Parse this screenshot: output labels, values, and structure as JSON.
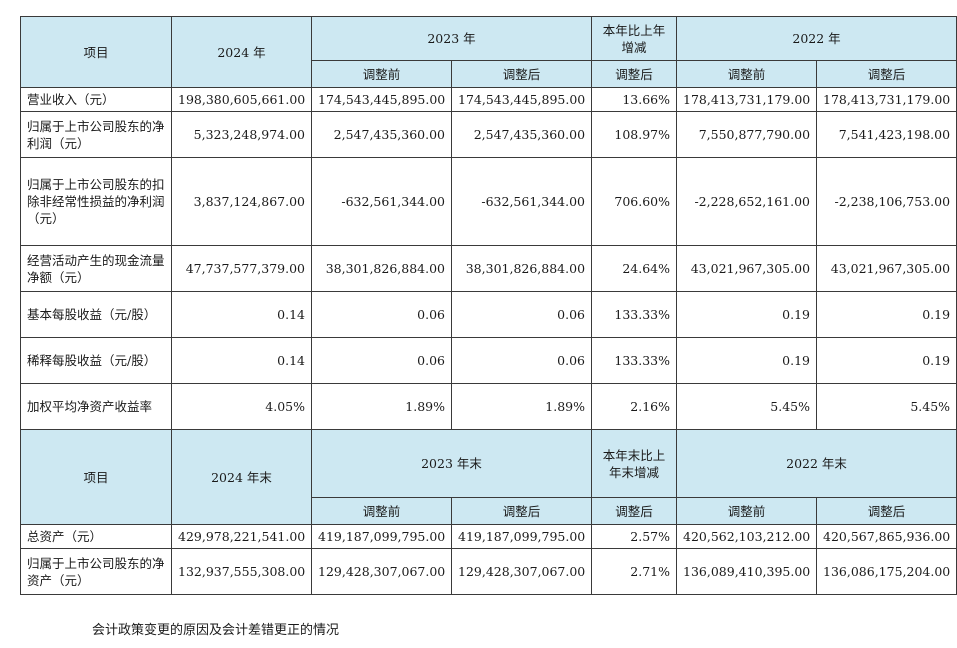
{
  "section1": {
    "col_item": "项目",
    "col_2024": "2024 年",
    "col_2023": "2023 年",
    "col_change": "本年比上年增减",
    "col_2022": "2022 年",
    "sub_before": "调整前",
    "sub_after": "调整后",
    "rows": [
      {
        "label": "营业收入（元）",
        "v2024": "198,380,605,661.00",
        "v2023b": "174,543,445,895.00",
        "v2023a": "174,543,445,895.00",
        "change": "13.66%",
        "v2022b": "178,413,731,179.00",
        "v2022a": "178,413,731,179.00"
      },
      {
        "label": "归属于上市公司股东的净利润（元）",
        "v2024": "5,323,248,974.00",
        "v2023b": "2,547,435,360.00",
        "v2023a": "2,547,435,360.00",
        "change": "108.97%",
        "v2022b": "7,550,877,790.00",
        "v2022a": "7,541,423,198.00"
      },
      {
        "label": "归属于上市公司股东的扣除非经常性损益的净利润（元）",
        "v2024": "3,837,124,867.00",
        "v2023b": "-632,561,344.00",
        "v2023a": "-632,561,344.00",
        "change": "706.60%",
        "v2022b": "-2,228,652,161.00",
        "v2022a": "-2,238,106,753.00"
      },
      {
        "label": "经营活动产生的现金流量净额（元）",
        "v2024": "47,737,577,379.00",
        "v2023b": "38,301,826,884.00",
        "v2023a": "38,301,826,884.00",
        "change": "24.64%",
        "v2022b": "43,021,967,305.00",
        "v2022a": "43,021,967,305.00"
      },
      {
        "label": "基本每股收益（元/股）",
        "v2024": "0.14",
        "v2023b": "0.06",
        "v2023a": "0.06",
        "change": "133.33%",
        "v2022b": "0.19",
        "v2022a": "0.19"
      },
      {
        "label": "稀释每股收益（元/股）",
        "v2024": "0.14",
        "v2023b": "0.06",
        "v2023a": "0.06",
        "change": "133.33%",
        "v2022b": "0.19",
        "v2022a": "0.19"
      },
      {
        "label": "加权平均净资产收益率",
        "v2024": "4.05%",
        "v2023b": "1.89%",
        "v2023a": "1.89%",
        "change": "2.16%",
        "v2022b": "5.45%",
        "v2022a": "5.45%"
      }
    ]
  },
  "section2": {
    "col_item": "项目",
    "col_2024": "2024 年末",
    "col_2023": "2023 年末",
    "col_change": "本年末比上年末增减",
    "col_2022": "2022 年末",
    "sub_before": "调整前",
    "sub_after": "调整后",
    "rows": [
      {
        "label": "总资产（元）",
        "v2024": "429,978,221,541.00",
        "v2023b": "419,187,099,795.00",
        "v2023a": "419,187,099,795.00",
        "change": "2.57%",
        "v2022b": "420,562,103,212.00",
        "v2022a": "420,567,865,936.00"
      },
      {
        "label": "归属于上市公司股东的净资产（元）",
        "v2024": "132,937,555,308.00",
        "v2023b": "129,428,307,067.00",
        "v2023a": "129,428,307,067.00",
        "change": "2.71%",
        "v2022b": "136,089,410,395.00",
        "v2022a": "136,086,175,204.00"
      }
    ]
  },
  "footnote": "会计政策变更的原因及会计差错更正的情况"
}
